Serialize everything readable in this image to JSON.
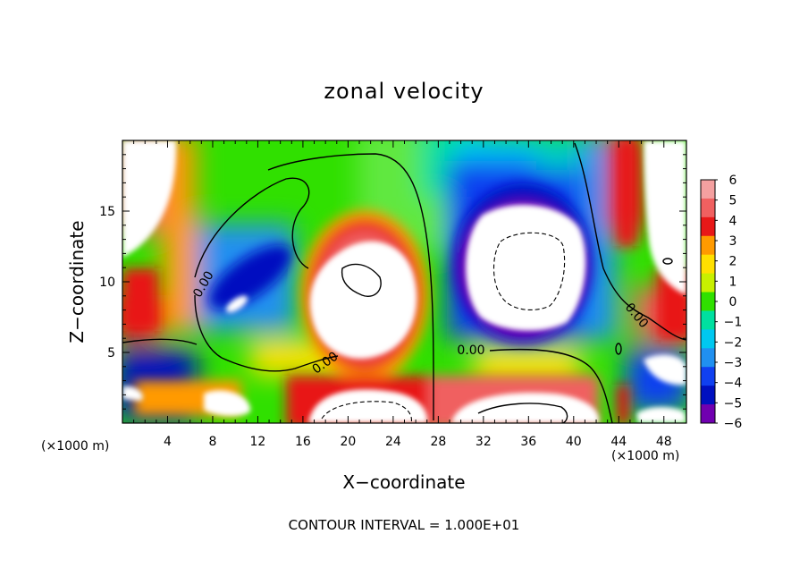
{
  "chart_data": {
    "type": "heatmap",
    "title": "zonal velocity",
    "xlabel": "X−coordinate",
    "ylabel": "Z−coordinate",
    "x_unit_label": "(×1000 m)",
    "z_unit_label": "(×1000 m)",
    "xlim": [
      0,
      50
    ],
    "ylim": [
      0,
      20
    ],
    "x_ticks": [
      4,
      8,
      12,
      16,
      20,
      24,
      28,
      32,
      36,
      40,
      44,
      48
    ],
    "y_ticks": [
      5,
      10,
      15
    ],
    "colorbar": {
      "levels": [
        6,
        5,
        4,
        3,
        2,
        1,
        0,
        -1,
        -2,
        -3,
        -4,
        -5,
        -6
      ],
      "labels": [
        "6",
        "5",
        "4",
        "3",
        "2",
        "1",
        "0",
        "−1",
        "−2",
        "−3",
        "−4",
        "−5",
        "−6"
      ],
      "colors": [
        "#f4a0a0",
        "#f06060",
        "#e81818",
        "#ff9a00",
        "#ffe000",
        "#c8f000",
        "#30e000",
        "#00e0a0",
        "#00c8f0",
        "#2090f0",
        "#1040f0",
        "#0010c0",
        "#7000b0"
      ]
    },
    "saturation_color_high": "#ffffff",
    "saturation_color_low": "#ffffff",
    "contour_labels": [
      "0.00",
      "0.00",
      "0.00",
      "0.00"
    ],
    "grid": false,
    "footer": "CONTOUR INTERVAL = 1.000E+01"
  }
}
